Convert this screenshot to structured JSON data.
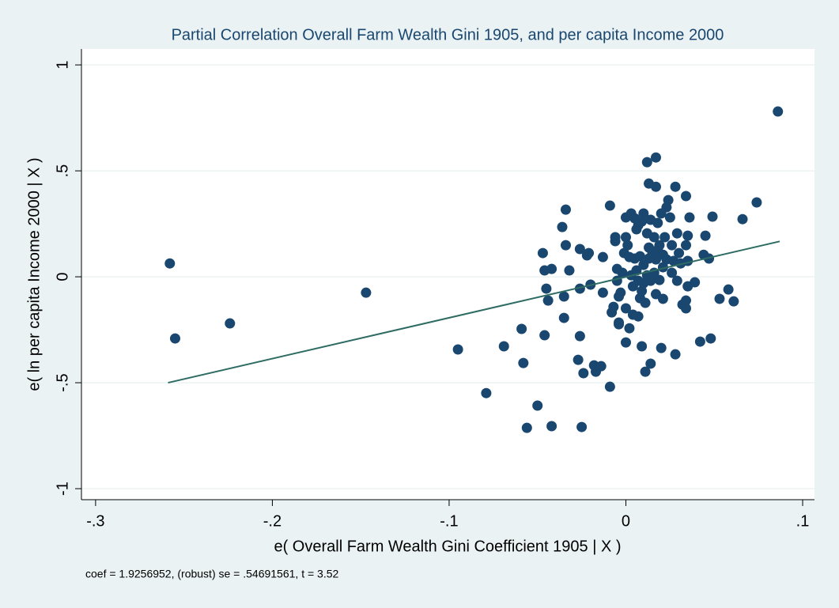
{
  "chart_data": {
    "type": "scatter",
    "title": "Partial Correlation Overall Farm Wealth Gini 1905, and per capita Income 2000",
    "xlabel": "e( Overall Farm Wealth Gini Coefficient 1905 | X )",
    "ylabel": "e( ln per capita Income 2000 | X )",
    "note": "coef = 1.9256952, (robust) se = .54691561, t = 3.52",
    "xlim": [
      -0.308,
      0.1067
    ],
    "ylim": [
      -1.052,
      1.075
    ],
    "xticks": [
      {
        "value": -0.3,
        "label": "-.3"
      },
      {
        "value": -0.2,
        "label": "-.2"
      },
      {
        "value": -0.1,
        "label": "-.1"
      },
      0,
      {
        "value": 0.1,
        "label": ".1"
      }
    ],
    "yticks": [
      -1,
      {
        "value": -0.5,
        "label": "-.5"
      },
      0,
      {
        "value": 0.5,
        "label": ".5"
      },
      1
    ],
    "grid": true,
    "series": [
      {
        "color": "#1a476f",
        "x": [
          -0.258,
          -0.255,
          -0.224,
          -0.147,
          -0.095,
          -0.079,
          -0.069,
          -0.056,
          -0.05,
          -0.059,
          -0.058,
          -0.042,
          -0.025,
          -0.047,
          -0.046,
          -0.045,
          -0.044,
          -0.046,
          -0.042,
          -0.036,
          -0.034,
          -0.034,
          -0.035,
          -0.035,
          -0.032,
          -0.026,
          -0.026,
          -0.026,
          -0.027,
          -0.024,
          -0.021,
          -0.022,
          -0.02,
          -0.018,
          -0.017,
          -0.013,
          -0.014,
          -0.013,
          -0.009,
          -0.009,
          -0.008,
          -0.007,
          -0.006,
          -0.006,
          -0.005,
          -0.005,
          -0.004,
          -0.004,
          -0.004,
          -0.003,
          -0.002,
          -0.001,
          0,
          0,
          0,
          0,
          0.001,
          0.002,
          0.002,
          0.003,
          0.003,
          0.004,
          0.004,
          0.005,
          0.005,
          0.006,
          0.006,
          0.007,
          0.007,
          0.007,
          0.008,
          0.008,
          0.009,
          0.009,
          0.009,
          0.01,
          0.01,
          0.01,
          0.011,
          0.011,
          0.012,
          0.012,
          0.012,
          0.013,
          0.013,
          0.013,
          0.014,
          0.014,
          0.014,
          0.015,
          0.016,
          0.016,
          0.017,
          0.017,
          0.017,
          0.017,
          0.018,
          0.018,
          0.019,
          0.019,
          0.02,
          0.02,
          0.021,
          0.021,
          0.021,
          0.022,
          0.023,
          0.023,
          0.024,
          0.025,
          0.026,
          0.026,
          0.027,
          0.028,
          0.028,
          0.029,
          0.029,
          0.03,
          0.031,
          0.032,
          0.034,
          0.034,
          0.034,
          0.034,
          0.035,
          0.035,
          0.036,
          0.035,
          0.039,
          0.042,
          0.044,
          0.045,
          0.047,
          0.048,
          0.049,
          0.053,
          0.058,
          0.061,
          0.066,
          0.074,
          0.086
        ],
        "values": [
          0.063,
          -0.291,
          -0.22,
          -0.075,
          -0.343,
          -0.549,
          -0.328,
          -0.713,
          -0.608,
          -0.246,
          -0.407,
          -0.705,
          -0.709,
          0.112,
          0.03,
          -0.056,
          -0.112,
          -0.276,
          0.037,
          0.235,
          0.317,
          0.149,
          -0.194,
          -0.093,
          0.03,
          -0.056,
          0.131,
          -0.28,
          -0.392,
          -0.455,
          0.112,
          0.101,
          -0.037,
          -0.418,
          -0.448,
          0.093,
          -0.422,
          -0.075,
          0.336,
          -0.519,
          -0.168,
          -0.142,
          0.168,
          0.187,
          0.037,
          -0.019,
          -0.224,
          -0.216,
          -0.093,
          -0.075,
          0.019,
          0.112,
          0.28,
          -0.31,
          0.187,
          -0.149,
          0.149,
          0.093,
          -0.243,
          0.299,
          0.007,
          -0.045,
          -0.179,
          0.086,
          0.276,
          0.224,
          0.03,
          -0.187,
          0.243,
          -0.019,
          0.097,
          -0.101,
          -0.328,
          -0.067,
          0.261,
          0.056,
          0.299,
          -0.03,
          -0.448,
          -0.123,
          0.205,
          0.007,
          0.541,
          0.138,
          0.086,
          0.44,
          -0.019,
          0.269,
          -0.41,
          0.112,
          0.019,
          0.187,
          -0.082,
          0.082,
          0.563,
          0.425,
          0.127,
          0.254,
          -0.015,
          0.149,
          -0.336,
          0.299,
          0.045,
          -0.104,
          0.104,
          0.187,
          0.328,
          0.082,
          0.362,
          0.28,
          0.019,
          0.149,
          0.075,
          0.425,
          -0.366,
          -0.019,
          0.205,
          0.112,
          0.063,
          -0.131,
          0.381,
          -0.112,
          -0.149,
          0.149,
          0.194,
          0.075,
          0.28,
          -0.045,
          -0.026,
          -0.306,
          0.104,
          0.194,
          0.086,
          -0.291,
          0.284,
          -0.104,
          -0.06,
          -0.116,
          0.272,
          0.351,
          0.78
        ]
      }
    ],
    "fit": {
      "color": "#2e6b63",
      "x": [
        -0.259,
        0.087
      ],
      "values": [
        -0.5,
        0.167
      ]
    }
  }
}
